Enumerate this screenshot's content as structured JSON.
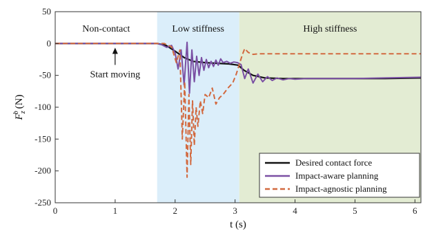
{
  "chart_data": {
    "type": "line",
    "title": "",
    "xlabel": "t (s)",
    "ylabel_main": "F",
    "ylabel_sup": "b",
    "ylabel_sub": "z",
    "ylabel_unit": "(N)",
    "xlim": [
      0,
      6.1
    ],
    "ylim": [
      -250,
      50
    ],
    "xticks": [
      0,
      1,
      2,
      3,
      4,
      5,
      6
    ],
    "yticks": [
      50,
      0,
      -50,
      -100,
      -150,
      -200,
      -250
    ],
    "grid": false,
    "legend_position": "bottom-right",
    "regions": [
      {
        "label": "Non-contact",
        "x0": 0,
        "x1": 1.7,
        "color": "#ffffff"
      },
      {
        "label": "Low stiffness",
        "x0": 1.7,
        "x1": 3.07,
        "color": "#dbeefa"
      },
      {
        "label": "High stiffness",
        "x0": 3.07,
        "x1": 6.1,
        "color": "#e3ecd3"
      }
    ],
    "annotation": {
      "text": "Start moving",
      "x": 0.7,
      "y": -12
    },
    "series": [
      {
        "name": "Desired contact force",
        "color": "#111111",
        "style": "solid",
        "x": [
          0,
          1.7,
          1.85,
          2.0,
          2.15,
          2.3,
          2.5,
          2.7,
          2.9,
          3.05,
          3.15,
          3.3,
          3.5,
          3.8,
          4.5,
          5.5,
          6.1
        ],
        "y": [
          0,
          0,
          -3,
          -12,
          -22,
          -28,
          -30,
          -31,
          -32,
          -34,
          -42,
          -50,
          -54,
          -55,
          -55,
          -55,
          -54
        ]
      },
      {
        "name": "Impact-aware planning",
        "color": "#7a4fa3",
        "style": "solid",
        "x": [
          0,
          1.7,
          1.78,
          1.86,
          1.94,
          2.0,
          2.05,
          2.1,
          2.15,
          2.2,
          2.24,
          2.28,
          2.32,
          2.36,
          2.4,
          2.44,
          2.48,
          2.52,
          2.56,
          2.6,
          2.64,
          2.68,
          2.72,
          2.76,
          2.8,
          2.86,
          2.92,
          2.98,
          3.04,
          3.1,
          3.16,
          3.22,
          3.3,
          3.38,
          3.46,
          3.54,
          3.62,
          3.7,
          3.8,
          3.9,
          4.0,
          4.2,
          4.5,
          5.0,
          5.5,
          6.1
        ],
        "y": [
          0,
          0,
          -2,
          -6,
          -3,
          -15,
          -40,
          -10,
          -65,
          2,
          -78,
          -10,
          -60,
          -20,
          -50,
          -22,
          -42,
          -25,
          -38,
          -28,
          -36,
          -26,
          -34,
          -24,
          -30,
          -28,
          -31,
          -29,
          -30,
          -33,
          -55,
          -40,
          -62,
          -48,
          -60,
          -52,
          -58,
          -54,
          -57,
          -55,
          -56,
          -55,
          -55,
          -55,
          -54,
          -53
        ]
      },
      {
        "name": "Impact-agnostic planning",
        "color": "#d2693f",
        "style": "dashed",
        "x": [
          0,
          1.7,
          1.82,
          1.94,
          2.02,
          2.08,
          2.12,
          2.16,
          2.2,
          2.23,
          2.26,
          2.29,
          2.32,
          2.35,
          2.38,
          2.42,
          2.46,
          2.5,
          2.56,
          2.62,
          2.68,
          2.74,
          2.8,
          2.88,
          2.96,
          3.02,
          3.08,
          3.12,
          3.16,
          3.22,
          3.3,
          3.4,
          3.6,
          4.0,
          4.5,
          5.0,
          5.5,
          6.1
        ],
        "y": [
          0,
          0,
          0,
          -5,
          -30,
          -10,
          -150,
          -60,
          -210,
          -80,
          -190,
          -90,
          -160,
          -100,
          -130,
          -90,
          -110,
          -80,
          -85,
          -70,
          -95,
          -85,
          -80,
          -70,
          -62,
          -48,
          -30,
          -18,
          -8,
          -14,
          -17,
          -16,
          -16,
          -16,
          -16,
          -16,
          -16,
          -16
        ]
      }
    ]
  }
}
